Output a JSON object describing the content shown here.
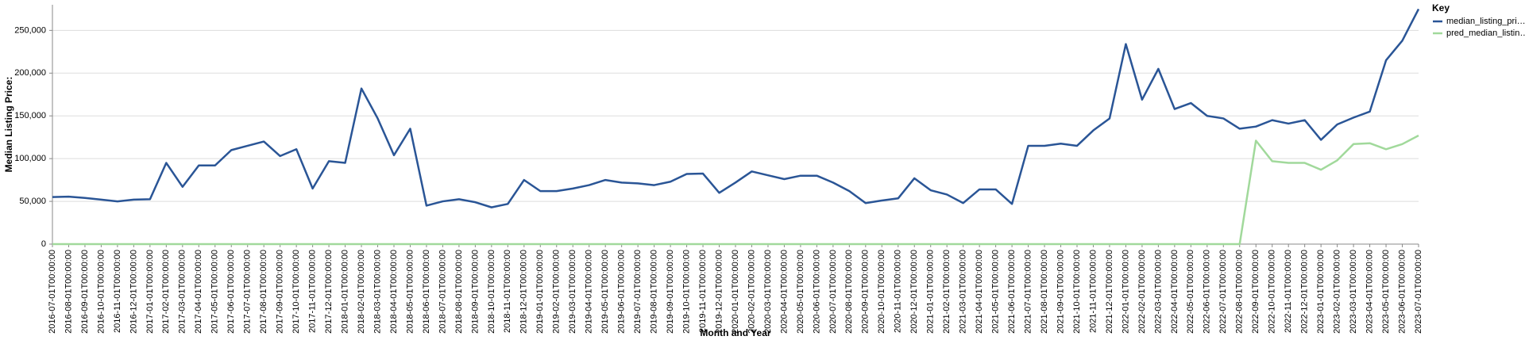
{
  "chart_data": {
    "type": "line",
    "x_label": "Month and Year",
    "y_label": "Median Listing Price:",
    "legend_title": "Key",
    "legend_position": "right",
    "grid": true,
    "categories": [
      "2016-07-01T00:00:00",
      "2016-08-01T00:00:00",
      "2016-09-01T00:00:00",
      "2016-10-01T00:00:00",
      "2016-11-01T00:00:00",
      "2016-12-01T00:00:00",
      "2017-01-01T00:00:00",
      "2017-02-01T00:00:00",
      "2017-03-01T00:00:00",
      "2017-04-01T00:00:00",
      "2017-05-01T00:00:00",
      "2017-06-01T00:00:00",
      "2017-07-01T00:00:00",
      "2017-08-01T00:00:00",
      "2017-09-01T00:00:00",
      "2017-10-01T00:00:00",
      "2017-11-01T00:00:00",
      "2017-12-01T00:00:00",
      "2018-01-01T00:00:00",
      "2018-02-01T00:00:00",
      "2018-03-01T00:00:00",
      "2018-04-01T00:00:00",
      "2018-05-01T00:00:00",
      "2018-06-01T00:00:00",
      "2018-07-01T00:00:00",
      "2018-08-01T00:00:00",
      "2018-09-01T00:00:00",
      "2018-10-01T00:00:00",
      "2018-11-01T00:00:00",
      "2018-12-01T00:00:00",
      "2019-01-01T00:00:00",
      "2019-02-01T00:00:00",
      "2019-03-01T00:00:00",
      "2019-04-01T00:00:00",
      "2019-05-01T00:00:00",
      "2019-06-01T00:00:00",
      "2019-07-01T00:00:00",
      "2019-08-01T00:00:00",
      "2019-09-01T00:00:00",
      "2019-10-01T00:00:00",
      "2019-11-01T00:00:00",
      "2019-12-01T00:00:00",
      "2020-01-01T00:00:00",
      "2020-02-01T00:00:00",
      "2020-03-01T00:00:00",
      "2020-04-01T00:00:00",
      "2020-05-01T00:00:00",
      "2020-06-01T00:00:00",
      "2020-07-01T00:00:00",
      "2020-08-01T00:00:00",
      "2020-09-01T00:00:00",
      "2020-10-01T00:00:00",
      "2020-11-01T00:00:00",
      "2020-12-01T00:00:00",
      "2021-01-01T00:00:00",
      "2021-02-01T00:00:00",
      "2021-03-01T00:00:00",
      "2021-04-01T00:00:00",
      "2021-05-01T00:00:00",
      "2021-06-01T00:00:00",
      "2021-07-01T00:00:00",
      "2021-08-01T00:00:00",
      "2021-09-01T00:00:00",
      "2021-10-01T00:00:00",
      "2021-11-01T00:00:00",
      "2021-12-01T00:00:00",
      "2022-01-01T00:00:00",
      "2022-02-01T00:00:00",
      "2022-03-01T00:00:00",
      "2022-04-01T00:00:00",
      "2022-05-01T00:00:00",
      "2022-06-01T00:00:00",
      "2022-07-01T00:00:00",
      "2022-08-01T00:00:00",
      "2022-09-01T00:00:00",
      "2022-10-01T00:00:00",
      "2022-11-01T00:00:00",
      "2022-12-01T00:00:00",
      "2023-01-01T00:00:00",
      "2023-02-01T00:00:00",
      "2023-03-01T00:00:00",
      "2023-04-01T00:00:00",
      "2023-05-01T00:00:00",
      "2023-06-01T00:00:00",
      "2023-07-01T00:00:00"
    ],
    "series": [
      {
        "name": "median_listing_pri…",
        "color": "#2a5596",
        "values": [
          55000,
          55500,
          54000,
          52000,
          50000,
          52000,
          52500,
          95000,
          67000,
          92000,
          92000,
          110000,
          115000,
          120000,
          103000,
          111000,
          65000,
          97000,
          95000,
          182000,
          147000,
          104000,
          135000,
          45000,
          50000,
          52500,
          49000,
          43000,
          47000,
          75000,
          62000,
          62000,
          65000,
          69000,
          75000,
          72000,
          71000,
          69000,
          73000,
          82000,
          82500,
          60000,
          72000,
          85000,
          80500,
          76000,
          80000,
          80000,
          72000,
          62000,
          48000,
          51000,
          53500,
          77000,
          63000,
          58000,
          48000,
          64000,
          64000,
          47000,
          115000,
          115000,
          117500,
          115000,
          133000,
          147000,
          234000,
          169000,
          205000,
          158000,
          165000,
          150000,
          147000,
          135000,
          137500,
          145000,
          141000,
          145000,
          122000,
          140000,
          148000,
          155000,
          215000,
          238000,
          275000
        ]
      },
      {
        "name": "pred_median_listin…",
        "color": "#a1d99b",
        "values": [
          0,
          0,
          0,
          0,
          0,
          0,
          0,
          0,
          0,
          0,
          0,
          0,
          0,
          0,
          0,
          0,
          0,
          0,
          0,
          0,
          0,
          0,
          0,
          0,
          0,
          0,
          0,
          0,
          0,
          0,
          0,
          0,
          0,
          0,
          0,
          0,
          0,
          0,
          0,
          0,
          0,
          0,
          0,
          0,
          0,
          0,
          0,
          0,
          0,
          0,
          0,
          0,
          0,
          0,
          0,
          0,
          0,
          0,
          0,
          0,
          0,
          0,
          0,
          0,
          0,
          0,
          0,
          0,
          0,
          0,
          0,
          0,
          0,
          0,
          121000,
          97000,
          95000,
          95000,
          87000,
          98000,
          117000,
          118000,
          111000,
          117000,
          127000
        ]
      }
    ],
    "ylim": [
      0,
      280000
    ],
    "yticks": [
      0,
      {
        "value": 50000,
        "label": "50,000"
      },
      {
        "value": 100000,
        "label": "100,000"
      },
      {
        "value": 150000,
        "label": "150,000"
      },
      {
        "value": 200000,
        "label": "200,000"
      },
      {
        "value": 250000,
        "label": "250,000"
      }
    ]
  }
}
